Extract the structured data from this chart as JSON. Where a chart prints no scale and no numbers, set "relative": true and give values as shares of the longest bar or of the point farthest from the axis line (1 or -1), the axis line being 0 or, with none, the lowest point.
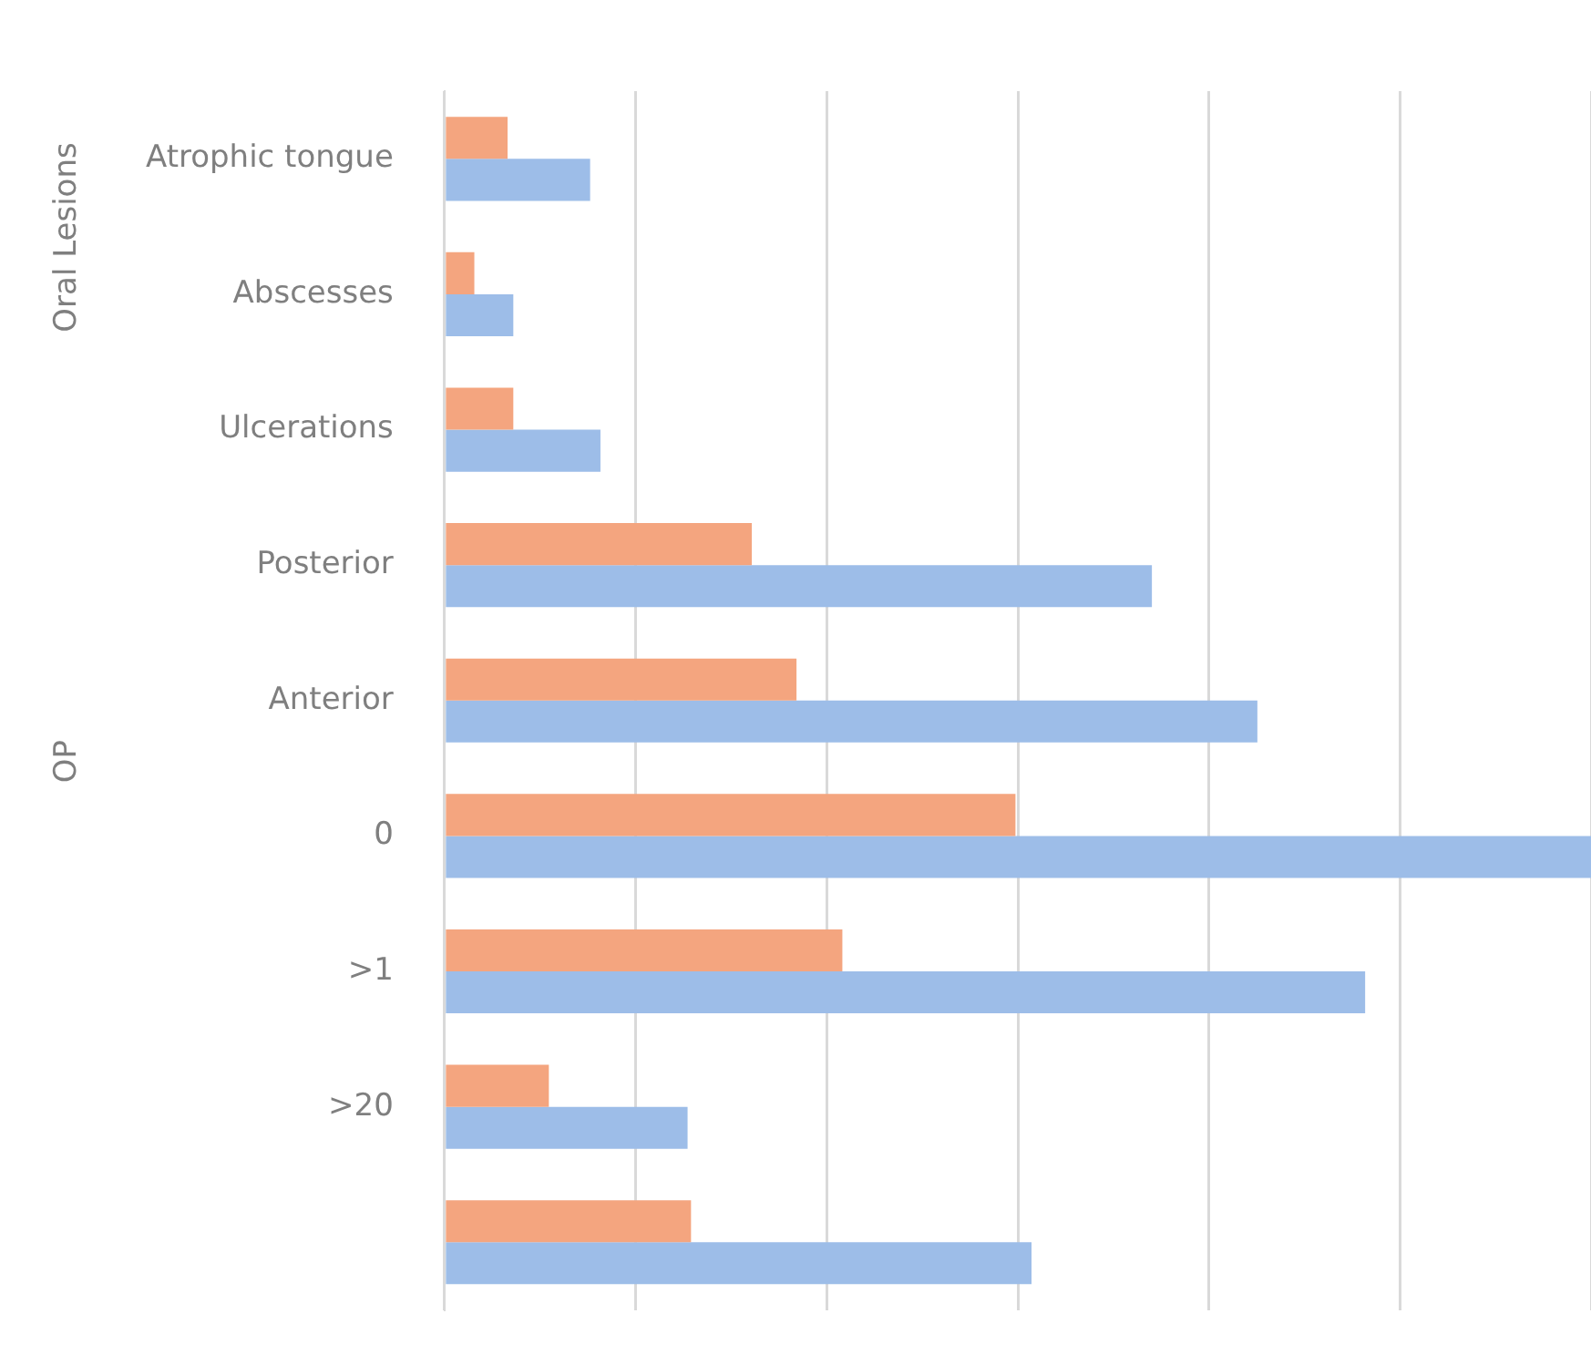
{
  "chart_data": {
    "type": "bar",
    "orientation": "horizontal",
    "relative": true,
    "grid": "x",
    "categories": [
      "Atrophic tongue",
      "Abscesses",
      "Ulcerations",
      "Posterior",
      "Anterior",
      "0",
      ">1",
      ">20",
      null
    ],
    "series": [
      {
        "color": "#f4a57f",
        "values": [
          0.055,
          0.026,
          0.06,
          0.268,
          0.307,
          0.498,
          0.347,
          0.091,
          0.215
        ]
      },
      {
        "color": "#9dbde8",
        "values": [
          0.127,
          0.06,
          0.136,
          0.617,
          0.709,
          1,
          0.803,
          0.212,
          0.512
        ]
      }
    ],
    "annotations": [
      "Oral Lesions",
      "OP"
    ]
  }
}
